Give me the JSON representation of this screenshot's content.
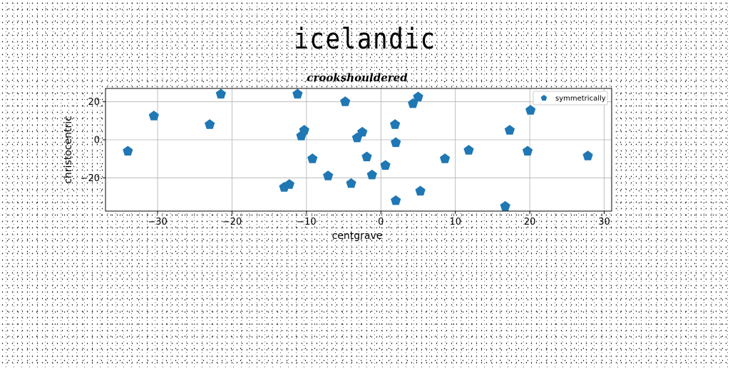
{
  "page": {
    "title": "icelandic"
  },
  "chart_data": {
    "type": "scatter",
    "title": "crookshouldered",
    "xlabel": "centgrave",
    "ylabel": "christocentric",
    "xlim": [
      -37,
      31
    ],
    "ylim": [
      -37.5,
      27
    ],
    "xticks": [
      -30,
      -20,
      -10,
      0,
      10,
      20,
      30
    ],
    "yticks": [
      -20,
      0,
      20
    ],
    "grid": true,
    "legend_position": "top-right",
    "marker": "pentagon",
    "color": "#1f77b4",
    "series": [
      {
        "name": "symmetrically",
        "points": [
          [
            -34,
            -6
          ],
          [
            -30.5,
            12.5
          ],
          [
            -23,
            8
          ],
          [
            -21.5,
            24
          ],
          [
            -13,
            -25
          ],
          [
            -12.3,
            -23.5
          ],
          [
            -11.2,
            24
          ],
          [
            -10.7,
            2
          ],
          [
            -10.3,
            5
          ],
          [
            -9.2,
            -10
          ],
          [
            -7.1,
            -19
          ],
          [
            -4.8,
            20
          ],
          [
            -4,
            -23
          ],
          [
            -3.2,
            1
          ],
          [
            -2.5,
            4
          ],
          [
            -1.9,
            -9
          ],
          [
            -1.2,
            -18.5
          ],
          [
            0.6,
            -13.5
          ],
          [
            1.9,
            8
          ],
          [
            2,
            -1.5
          ],
          [
            2,
            -32
          ],
          [
            4.3,
            19
          ],
          [
            5,
            22.5
          ],
          [
            5.3,
            -27
          ],
          [
            8.6,
            -10
          ],
          [
            11.8,
            -5.5
          ],
          [
            16.7,
            -35
          ],
          [
            17.3,
            5
          ],
          [
            19.7,
            -6
          ],
          [
            20.1,
            15.5
          ],
          [
            27.8,
            -8.5
          ]
        ]
      }
    ]
  }
}
